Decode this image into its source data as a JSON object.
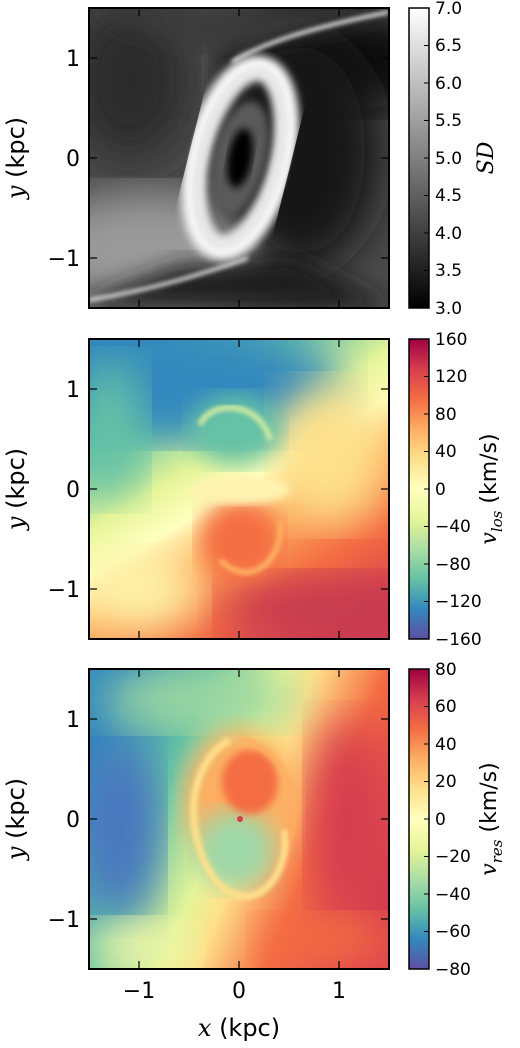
{
  "chart_data": [
    {
      "type": "heatmap",
      "panel": "top",
      "quantity_symbol": "SD",
      "colorbar_label": "SD",
      "colormap": "gray",
      "zlim": [
        3.0,
        7.0
      ],
      "colorbar_ticks": [
        "7.0",
        "6.5",
        "6.0",
        "5.5",
        "5.0",
        "4.5",
        "4.0",
        "3.5",
        "3.0"
      ],
      "xlim": [
        -1.5,
        1.5
      ],
      "ylim": [
        -1.5,
        1.5
      ],
      "xticks": [],
      "yticks": [
        "1",
        "0",
        "−1"
      ],
      "ylabel": "y (kpc)",
      "features": "bright elliptical ring tilted about 15° around a dark central core, bright arcs connecting to the upper-right and lower-left corners"
    },
    {
      "type": "heatmap",
      "panel": "middle",
      "colorbar_label": "v_los (km/s)",
      "colormap": "Spectral_r",
      "zlim": [
        -160,
        160
      ],
      "colorbar_ticks": [
        "160",
        "120",
        "80",
        "40",
        "0",
        "−40",
        "−80",
        "−120",
        "−160"
      ],
      "xlim": [
        -1.5,
        1.5
      ],
      "ylim": [
        -1.5,
        1.5
      ],
      "xticks": [],
      "yticks": [
        "1",
        "0",
        "−1"
      ],
      "ylabel": "y (kpc)",
      "features": "negative velocities toward upper-left, positive velocities toward lower-right, S-shaped transition through the centre"
    },
    {
      "type": "heatmap",
      "panel": "bottom",
      "colorbar_label": "v_res (km/s)",
      "colormap": "Spectral_r",
      "zlim": [
        -80,
        80
      ],
      "colorbar_ticks": [
        "80",
        "60",
        "40",
        "20",
        "0",
        "−20",
        "−40",
        "−60",
        "−80"
      ],
      "xlim": [
        -1.5,
        1.5
      ],
      "ylim": [
        -1.5,
        1.5
      ],
      "xticks": [
        "−1",
        "0",
        "1"
      ],
      "yticks": [
        "1",
        "0",
        "−1"
      ],
      "xlabel": "x (kpc)",
      "ylabel": "y (kpc)",
      "features": "residual velocity field with spiral pattern in centre, negative residuals to the upper-left, positive to the lower-right"
    }
  ],
  "labels": {
    "x_sym": "x",
    "y_sym": "y",
    "unit": "(kpc)",
    "sd_sym": "SD",
    "vlos_main": "v",
    "vlos_sub": "los",
    "vres_main": "v",
    "vres_sub": "res",
    "vel_unit": "(km/s)"
  }
}
